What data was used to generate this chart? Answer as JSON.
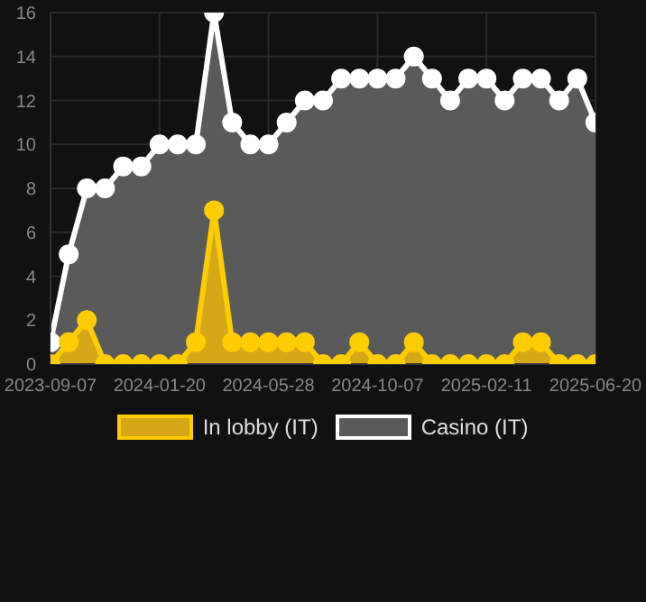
{
  "chart_data": {
    "type": "area",
    "categories": [
      "2023-09-07",
      null,
      null,
      null,
      null,
      null,
      "2024-01-20",
      null,
      null,
      null,
      null,
      null,
      "2024-05-28",
      null,
      null,
      null,
      null,
      null,
      "2024-10-07",
      null,
      null,
      null,
      null,
      null,
      "2025-02-11",
      null,
      null,
      null,
      null,
      null,
      "2025-06-20"
    ],
    "series": [
      {
        "name": "In lobby (IT)",
        "color": "#ffcc00",
        "values": [
          0,
          1,
          2,
          0,
          0,
          0,
          0,
          0,
          1,
          7,
          1,
          1,
          1,
          1,
          1,
          0,
          0,
          1,
          0,
          0,
          1,
          0,
          0,
          0,
          0,
          0,
          1,
          1,
          0,
          0,
          0
        ]
      },
      {
        "name": "Casino (IT)",
        "color": "#ffffff",
        "values": [
          1,
          5,
          8,
          8,
          9,
          9,
          10,
          10,
          10,
          16,
          11,
          10,
          10,
          11,
          12,
          12,
          13,
          13,
          13,
          13,
          14,
          13,
          12,
          13,
          13,
          12,
          13,
          13,
          12,
          13,
          11
        ]
      }
    ],
    "ylim": [
      0,
      16
    ],
    "yticks": [
      0,
      2,
      4,
      6,
      8,
      10,
      12,
      14,
      16
    ],
    "grid": true,
    "legend": "bottom",
    "marker": "circle"
  }
}
